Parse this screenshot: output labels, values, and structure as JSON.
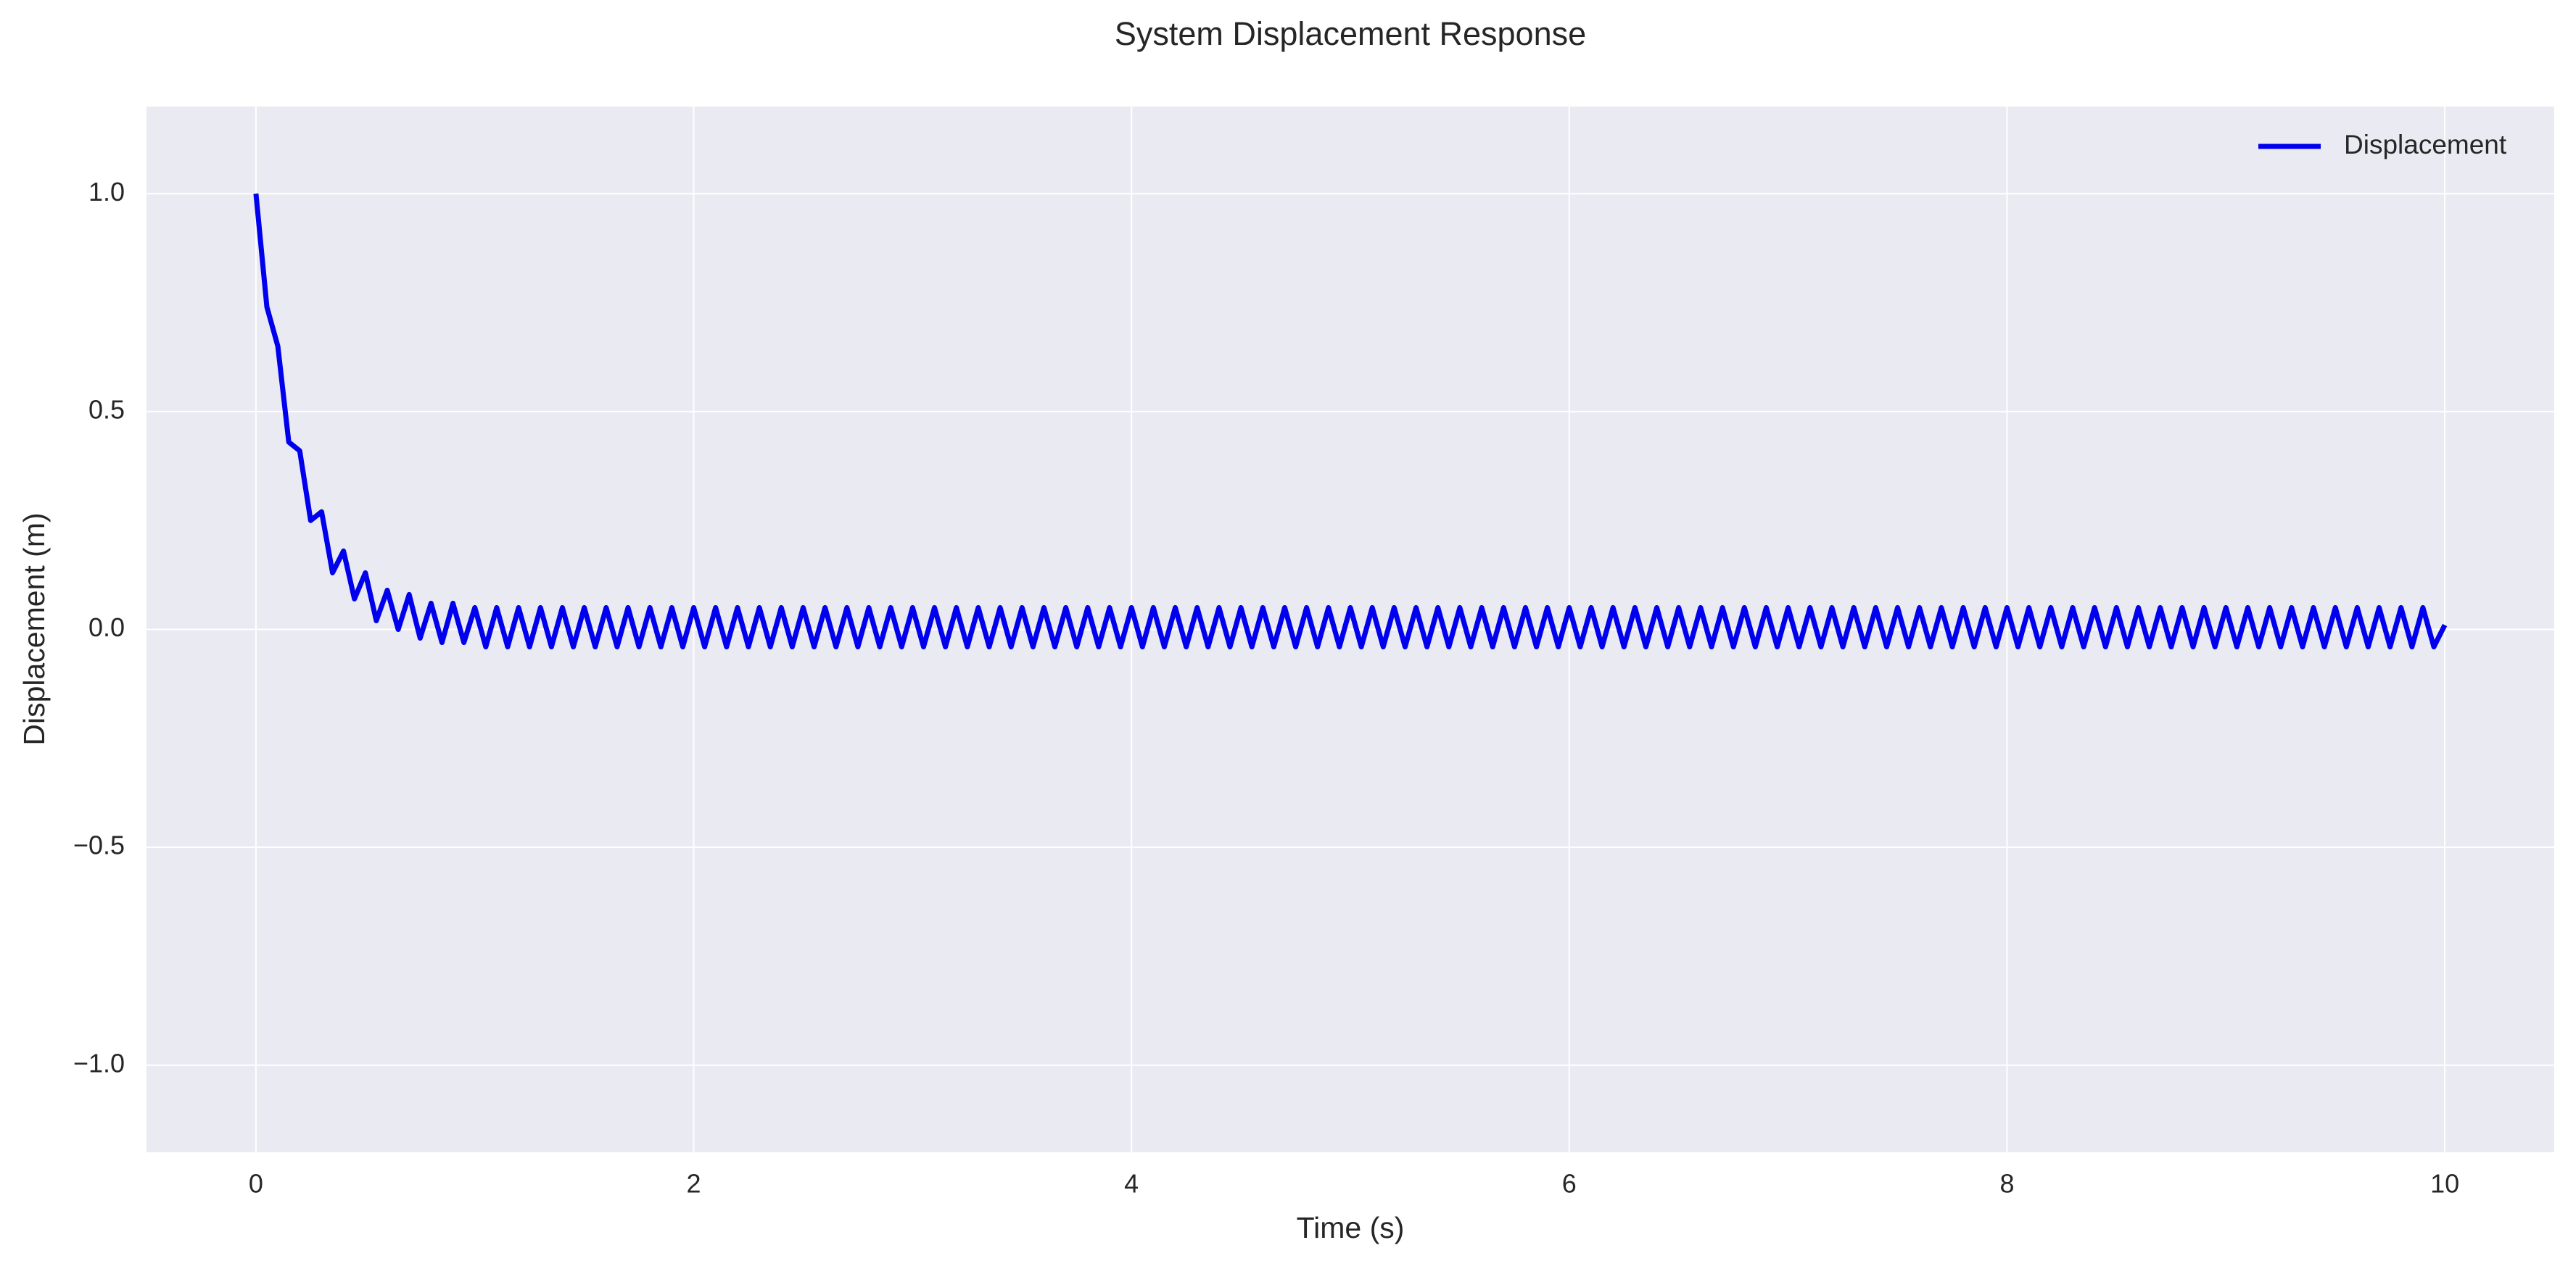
{
  "chart_data": {
    "type": "line",
    "title": "System Displacement Response",
    "x_label": "Time (s)",
    "y_label": "Displacement (m)",
    "x": [
      0,
      0.05,
      0.1,
      0.15,
      0.2,
      0.25,
      0.3,
      0.35,
      0.4,
      0.45,
      0.5,
      0.55,
      0.6,
      0.65,
      0.7,
      0.75,
      0.8,
      0.85,
      0.9,
      0.95,
      1,
      1.05,
      1.1,
      1.15,
      1.2,
      1.25,
      1.3,
      1.35,
      1.4,
      1.45,
      1.5,
      1.55,
      1.6,
      1.65,
      1.7,
      1.75,
      1.8,
      1.85,
      1.9,
      1.95,
      2,
      2.05,
      2.1,
      2.15,
      2.2,
      2.25,
      2.3,
      2.35,
      2.4,
      2.45,
      2.5,
      2.55,
      2.6,
      2.65,
      2.7,
      2.75,
      2.8,
      2.85,
      2.9,
      2.95,
      3,
      3.05,
      3.1,
      3.15,
      3.2,
      3.25,
      3.3,
      3.35,
      3.4,
      3.45,
      3.5,
      3.55,
      3.6,
      3.65,
      3.7,
      3.75,
      3.8,
      3.85,
      3.9,
      3.95,
      4,
      4.05,
      4.1,
      4.15,
      4.2,
      4.25,
      4.3,
      4.35,
      4.4,
      4.45,
      4.5,
      4.55,
      4.6,
      4.65,
      4.7,
      4.75,
      4.8,
      4.85,
      4.9,
      4.95,
      5,
      5.05,
      5.1,
      5.15,
      5.2,
      5.25,
      5.3,
      5.35,
      5.4,
      5.45,
      5.5,
      5.55,
      5.6,
      5.65,
      5.7,
      5.75,
      5.8,
      5.85,
      5.9,
      5.95,
      6,
      6.05,
      6.1,
      6.15,
      6.2,
      6.25,
      6.3,
      6.35,
      6.4,
      6.45,
      6.5,
      6.55,
      6.6,
      6.65,
      6.7,
      6.75,
      6.8,
      6.85,
      6.9,
      6.95,
      7,
      7.05,
      7.1,
      7.15,
      7.2,
      7.25,
      7.3,
      7.35,
      7.4,
      7.45,
      7.5,
      7.55,
      7.6,
      7.65,
      7.7,
      7.75,
      7.8,
      7.85,
      7.9,
      7.95,
      8,
      8.05,
      8.1,
      8.15,
      8.2,
      8.25,
      8.3,
      8.35,
      8.4,
      8.45,
      8.5,
      8.55,
      8.6,
      8.65,
      8.7,
      8.75,
      8.8,
      8.85,
      8.9,
      8.95,
      9,
      9.05,
      9.1,
      9.15,
      9.2,
      9.25,
      9.3,
      9.35,
      9.4,
      9.45,
      9.5,
      9.55,
      9.6,
      9.65,
      9.7,
      9.75,
      9.8,
      9.85,
      9.9,
      9.95,
      10
    ],
    "series": [
      {
        "name": "Displacement",
        "color": "#0000ee",
        "values": [
          1.0,
          0.74,
          0.65,
          0.43,
          0.41,
          0.25,
          0.27,
          0.13,
          0.18,
          0.07,
          0.13,
          0.02,
          0.09,
          0.0,
          0.08,
          -0.02,
          0.06,
          -0.03,
          0.06,
          -0.03,
          0.05,
          -0.04,
          0.05,
          -0.04,
          0.05,
          -0.04,
          0.05,
          -0.04,
          0.05,
          -0.04,
          0.05,
          -0.04,
          0.05,
          -0.04,
          0.05,
          -0.04,
          0.05,
          -0.04,
          0.05,
          -0.04,
          0.05,
          -0.04,
          0.05,
          -0.04,
          0.05,
          -0.04,
          0.05,
          -0.04,
          0.05,
          -0.04,
          0.05,
          -0.04,
          0.05,
          -0.04,
          0.05,
          -0.04,
          0.05,
          -0.04,
          0.05,
          -0.04,
          0.05,
          -0.04,
          0.05,
          -0.04,
          0.05,
          -0.04,
          0.05,
          -0.04,
          0.05,
          -0.04,
          0.05,
          -0.04,
          0.05,
          -0.04,
          0.05,
          -0.04,
          0.05,
          -0.04,
          0.05,
          -0.04,
          0.05,
          -0.04,
          0.05,
          -0.04,
          0.05,
          -0.04,
          0.05,
          -0.04,
          0.05,
          -0.04,
          0.05,
          -0.04,
          0.05,
          -0.04,
          0.05,
          -0.04,
          0.05,
          -0.04,
          0.05,
          -0.04,
          0.05,
          -0.04,
          0.05,
          -0.04,
          0.05,
          -0.04,
          0.05,
          -0.04,
          0.05,
          -0.04,
          0.05,
          -0.04,
          0.05,
          -0.04,
          0.05,
          -0.04,
          0.05,
          -0.04,
          0.05,
          -0.04,
          0.05,
          -0.04,
          0.05,
          -0.04,
          0.05,
          -0.04,
          0.05,
          -0.04,
          0.05,
          -0.04,
          0.05,
          -0.04,
          0.05,
          -0.04,
          0.05,
          -0.04,
          0.05,
          -0.04,
          0.05,
          -0.04,
          0.05,
          -0.04,
          0.05,
          -0.04,
          0.05,
          -0.04,
          0.05,
          -0.04,
          0.05,
          -0.04,
          0.05,
          -0.04,
          0.05,
          -0.04,
          0.05,
          -0.04,
          0.05,
          -0.04,
          0.05,
          -0.04,
          0.05,
          -0.04,
          0.05,
          -0.04,
          0.05,
          -0.04,
          0.05,
          -0.04,
          0.05,
          -0.04,
          0.05,
          -0.04,
          0.05,
          -0.04,
          0.05,
          -0.04,
          0.05,
          -0.04,
          0.05,
          -0.04,
          0.05,
          -0.04,
          0.05,
          -0.04,
          0.05,
          -0.04,
          0.05,
          -0.04,
          0.05,
          -0.04,
          0.05,
          -0.04,
          0.05,
          -0.04,
          0.05,
          -0.04,
          0.05,
          -0.04,
          0.05,
          -0.04,
          0.01
        ]
      }
    ],
    "xlim": [
      -0.5,
      10.5
    ],
    "ylim": [
      -1.2,
      1.2
    ],
    "xticks": [
      0,
      2,
      4,
      6,
      8,
      10
    ],
    "yticks": [
      {
        "value": -1,
        "label": "−1.0"
      },
      {
        "value": -0.5,
        "label": "−0.5"
      },
      {
        "value": 0,
        "label": "0.0"
      },
      {
        "value": 0.5,
        "label": "0.5"
      },
      {
        "value": 1,
        "label": "1.0"
      }
    ],
    "grid": true,
    "legend": "upper right"
  }
}
